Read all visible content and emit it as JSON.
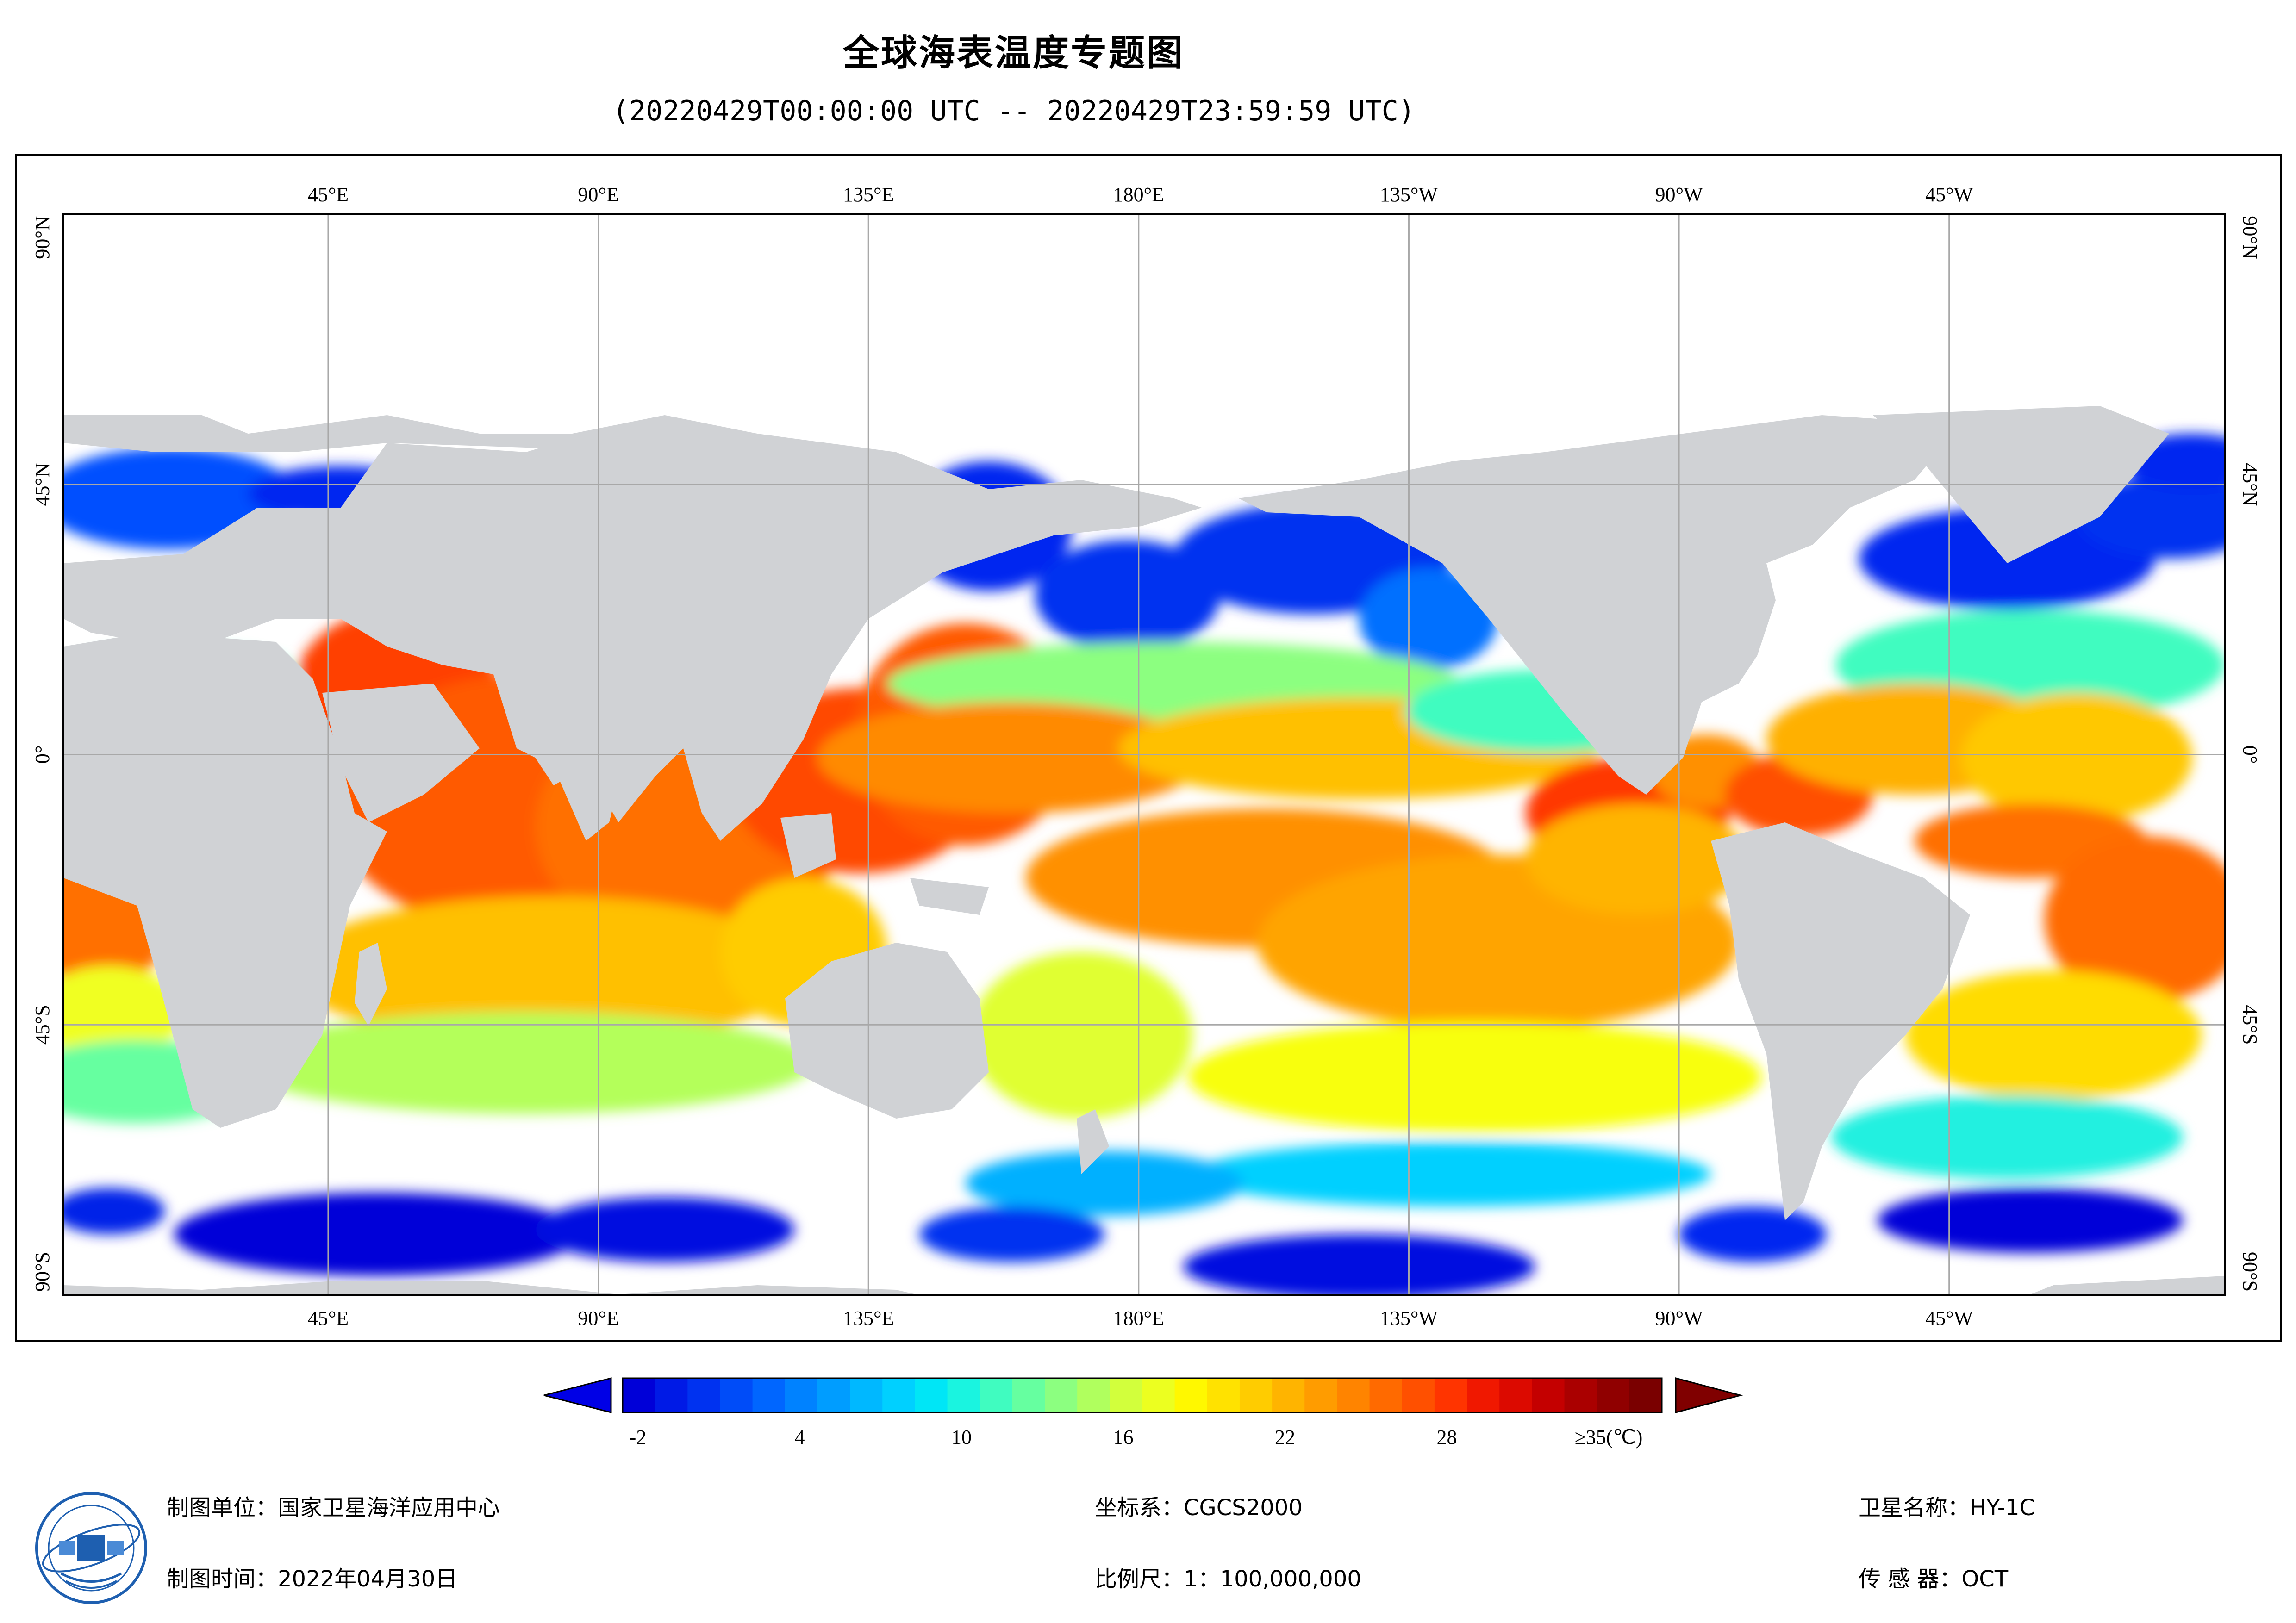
{
  "title": "全球海表温度专题图",
  "subtitle": "(20220429T00:00:00 UTC -- 20220429T23:59:59 UTC)",
  "map": {
    "lon_labels": [
      "45°E",
      "90°E",
      "135°E",
      "180°E",
      "135°W",
      "90°W",
      "45°W"
    ],
    "lat_labels": [
      "90°N",
      "45°N",
      "0°",
      "45°S",
      "90°S"
    ],
    "land_color": "#d0d2d5",
    "nodata_color": "#ffffff"
  },
  "legend": {
    "ticks": [
      "-2",
      "4",
      "10",
      "16",
      "22",
      "28",
      "≥35(℃)"
    ],
    "colors": [
      "#0000d8",
      "#001ae6",
      "#0032f0",
      "#004cf8",
      "#0066ff",
      "#0082ff",
      "#009dff",
      "#00b8ff",
      "#00d0ff",
      "#00e6f6",
      "#1af4e0",
      "#40fcc0",
      "#66ffa0",
      "#8cff80",
      "#b0ff5e",
      "#d2ff3c",
      "#ecff20",
      "#fff800",
      "#ffe200",
      "#ffcc00",
      "#ffb400",
      "#ff9c00",
      "#ff8400",
      "#ff6a00",
      "#ff5000",
      "#ff3400",
      "#f01800",
      "#dc0a00",
      "#c40000",
      "#aa0000",
      "#900000",
      "#7a0000"
    ]
  },
  "footer": {
    "unit": "制图单位：国家卫星海洋应用中心",
    "date": "制图时间：2022年04月30日",
    "crs": "坐标系：CGCS2000",
    "scale": "比例尺：1：100,000,000",
    "satellite": "卫星名称：HY-1C",
    "sensor": "传 感 器：OCT"
  }
}
